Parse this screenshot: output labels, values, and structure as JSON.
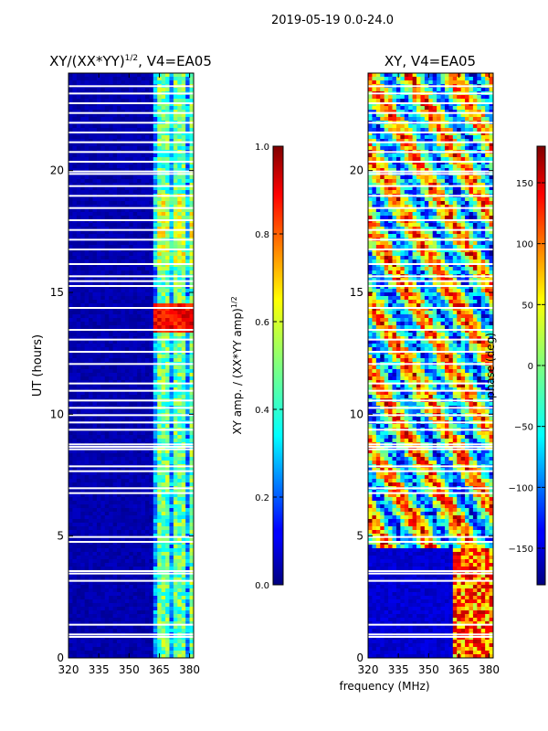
{
  "suptitle": "2019-05-19 0.0-24.0",
  "shared_xlabel": "frequency (MHz)",
  "chart_data": [
    {
      "type": "heatmap",
      "title_main": "XY/(XX*YY)",
      "title_sup": "1/2",
      "title_tail": ", V4=EA05",
      "ylabel": "UT (hours)",
      "xlim": [
        320,
        382
      ],
      "ylim": [
        0,
        24
      ],
      "xticks": [
        320,
        335,
        350,
        365,
        380
      ],
      "yticks": [
        0,
        5,
        10,
        15,
        20
      ],
      "colorbar": {
        "label": "XY amp. / (XX*YY amp)",
        "label_sup": "1/2",
        "range": [
          0.0,
          1.0
        ],
        "ticks": [
          "0.0",
          "0.2",
          "0.4",
          "0.6",
          "0.8",
          "1.0"
        ],
        "colormap": "jet"
      }
    },
    {
      "type": "heatmap",
      "title": "XY, V4=EA05",
      "xlim": [
        320,
        382
      ],
      "ylim": [
        0,
        24
      ],
      "xticks": [
        320,
        335,
        350,
        365,
        380
      ],
      "yticks": [
        0,
        5,
        10,
        15,
        20
      ],
      "colorbar": {
        "label": "phase (deg)",
        "range": [
          -180,
          180
        ],
        "ticks": [
          "−150",
          "−100",
          "−50",
          "0",
          "50",
          "100",
          "150"
        ],
        "colormap": "jet"
      }
    }
  ]
}
